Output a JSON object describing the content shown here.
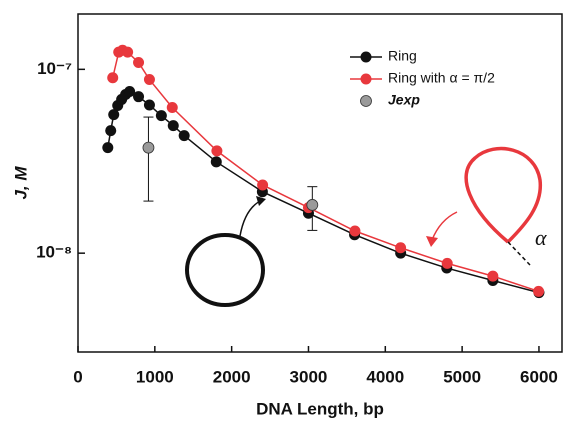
{
  "chart_data": {
    "type": "line",
    "xlabel": "DNA Length, bp",
    "ylabel": "J, M",
    "xlim": [
      0,
      6300
    ],
    "xticks": [
      0,
      1000,
      2000,
      3000,
      4000,
      5000,
      6000
    ],
    "ylim": [
      2.9e-09,
      2e-07
    ],
    "log_y": true,
    "yticks": [
      {
        "value": 1e-07,
        "label": "10⁻⁷"
      },
      {
        "value": 1e-08,
        "label": "10⁻⁸"
      }
    ],
    "legend": "upper right",
    "series": [
      {
        "name": "Ring",
        "color": "#111111",
        "line": true,
        "x": [
          388,
          426,
          465,
          517,
          568,
          620,
          672,
          788,
          930,
          1085,
          1240,
          1382,
          1800,
          2400,
          3000,
          3600,
          4200,
          4800,
          5400,
          6000
        ],
        "values": [
          3.75e-08,
          4.64e-08,
          5.67e-08,
          6.36e-08,
          6.86e-08,
          7.3e-08,
          7.58e-08,
          7.1e-08,
          6.4e-08,
          5.6e-08,
          4.94e-08,
          4.36e-08,
          3.14e-08,
          2.16e-08,
          1.65e-08,
          1.26e-08,
          1e-08,
          8.3e-09,
          7.1e-09,
          6.1e-09
        ]
      },
      {
        "name": "Ring with α = π/2",
        "color": "#e8383d",
        "line": true,
        "x": [
          452,
          530,
          580,
          646,
          788,
          930,
          1227,
          1808,
          2403,
          3000,
          3605,
          4199,
          4806,
          5400,
          5995
        ],
        "values": [
          9e-08,
          1.24e-07,
          1.27e-07,
          1.24e-07,
          1.09e-07,
          8.8e-08,
          6.2e-08,
          3.6e-08,
          2.35e-08,
          1.77e-08,
          1.32e-08,
          1.07e-08,
          8.8e-09,
          7.5e-09,
          6.2e-09
        ]
      },
      {
        "name": "Jexp",
        "color": "#9a9a9a",
        "line": false,
        "x": [
          917,
          3050
        ],
        "values": [
          3.75e-08,
          1.83e-08
        ],
        "lower": [
          1.92e-08,
          1.33e-08
        ],
        "upper": [
          5.5e-08,
          2.3e-08
        ]
      }
    ],
    "annotation": "α"
  }
}
